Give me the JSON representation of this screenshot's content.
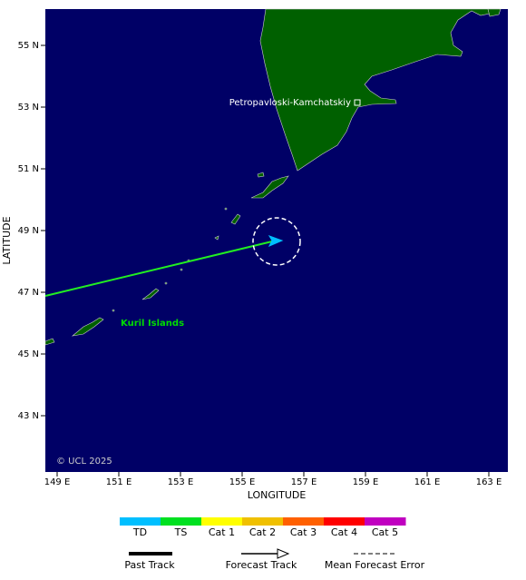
{
  "map": {
    "x_label": "LONGITUDE",
    "y_label": "LATITUDE",
    "x_ticks": [
      "149 E",
      "151 E",
      "153 E",
      "155 E",
      "157 E",
      "159 E",
      "161 E",
      "163 E"
    ],
    "y_ticks": [
      "55 N",
      "53 N",
      "51 N",
      "49 N",
      "47 N",
      "45 N",
      "43 N"
    ],
    "places": [
      "Petropavloski-Kamchatskiy",
      "Kuril Islands"
    ],
    "credit": "© UCL 2025"
  },
  "legend": {
    "categories": [
      {
        "label": "TD",
        "color": "#00bfff"
      },
      {
        "label": "TS",
        "color": "#00e020"
      },
      {
        "label": "Cat 1",
        "color": "#ffff00"
      },
      {
        "label": "Cat 2",
        "color": "#f0c000"
      },
      {
        "label": "Cat 3",
        "color": "#ff6000"
      },
      {
        "label": "Cat 4",
        "color": "#ff0000"
      },
      {
        "label": "Cat 5",
        "color": "#c000c0"
      }
    ],
    "lines": [
      "Past Track",
      "Forecast Track",
      "Mean Forecast Error"
    ]
  }
}
